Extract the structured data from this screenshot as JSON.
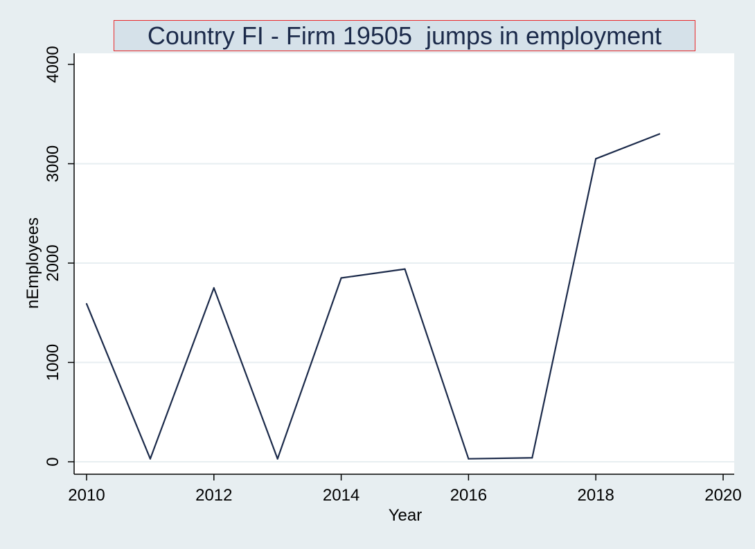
{
  "chart_data": {
    "type": "line",
    "title": "Country FI - Firm 19505  jumps in employment",
    "xlabel": "Year",
    "ylabel": "nEmployees",
    "xlim": [
      2010,
      2020
    ],
    "ylim": [
      0,
      4000
    ],
    "xticks": [
      2010,
      2012,
      2014,
      2016,
      2018,
      2020
    ],
    "yticks": [
      0,
      1000,
      2000,
      3000,
      4000
    ],
    "grid": "horizontal",
    "series": [
      {
        "x": [
          2010,
          2011,
          2012,
          2013,
          2014,
          2015,
          2016,
          2017,
          2018,
          2019
        ],
        "values": [
          1590,
          30,
          1750,
          30,
          1850,
          1940,
          30,
          40,
          3050,
          3300
        ]
      }
    ],
    "colors": {
      "line": "#1b2a4a",
      "background": "#e7eef1",
      "plot_background": "#ffffff",
      "grid": "#e7eef1",
      "title_box": "#d5e1e9",
      "title_border": "#e8282a"
    }
  }
}
